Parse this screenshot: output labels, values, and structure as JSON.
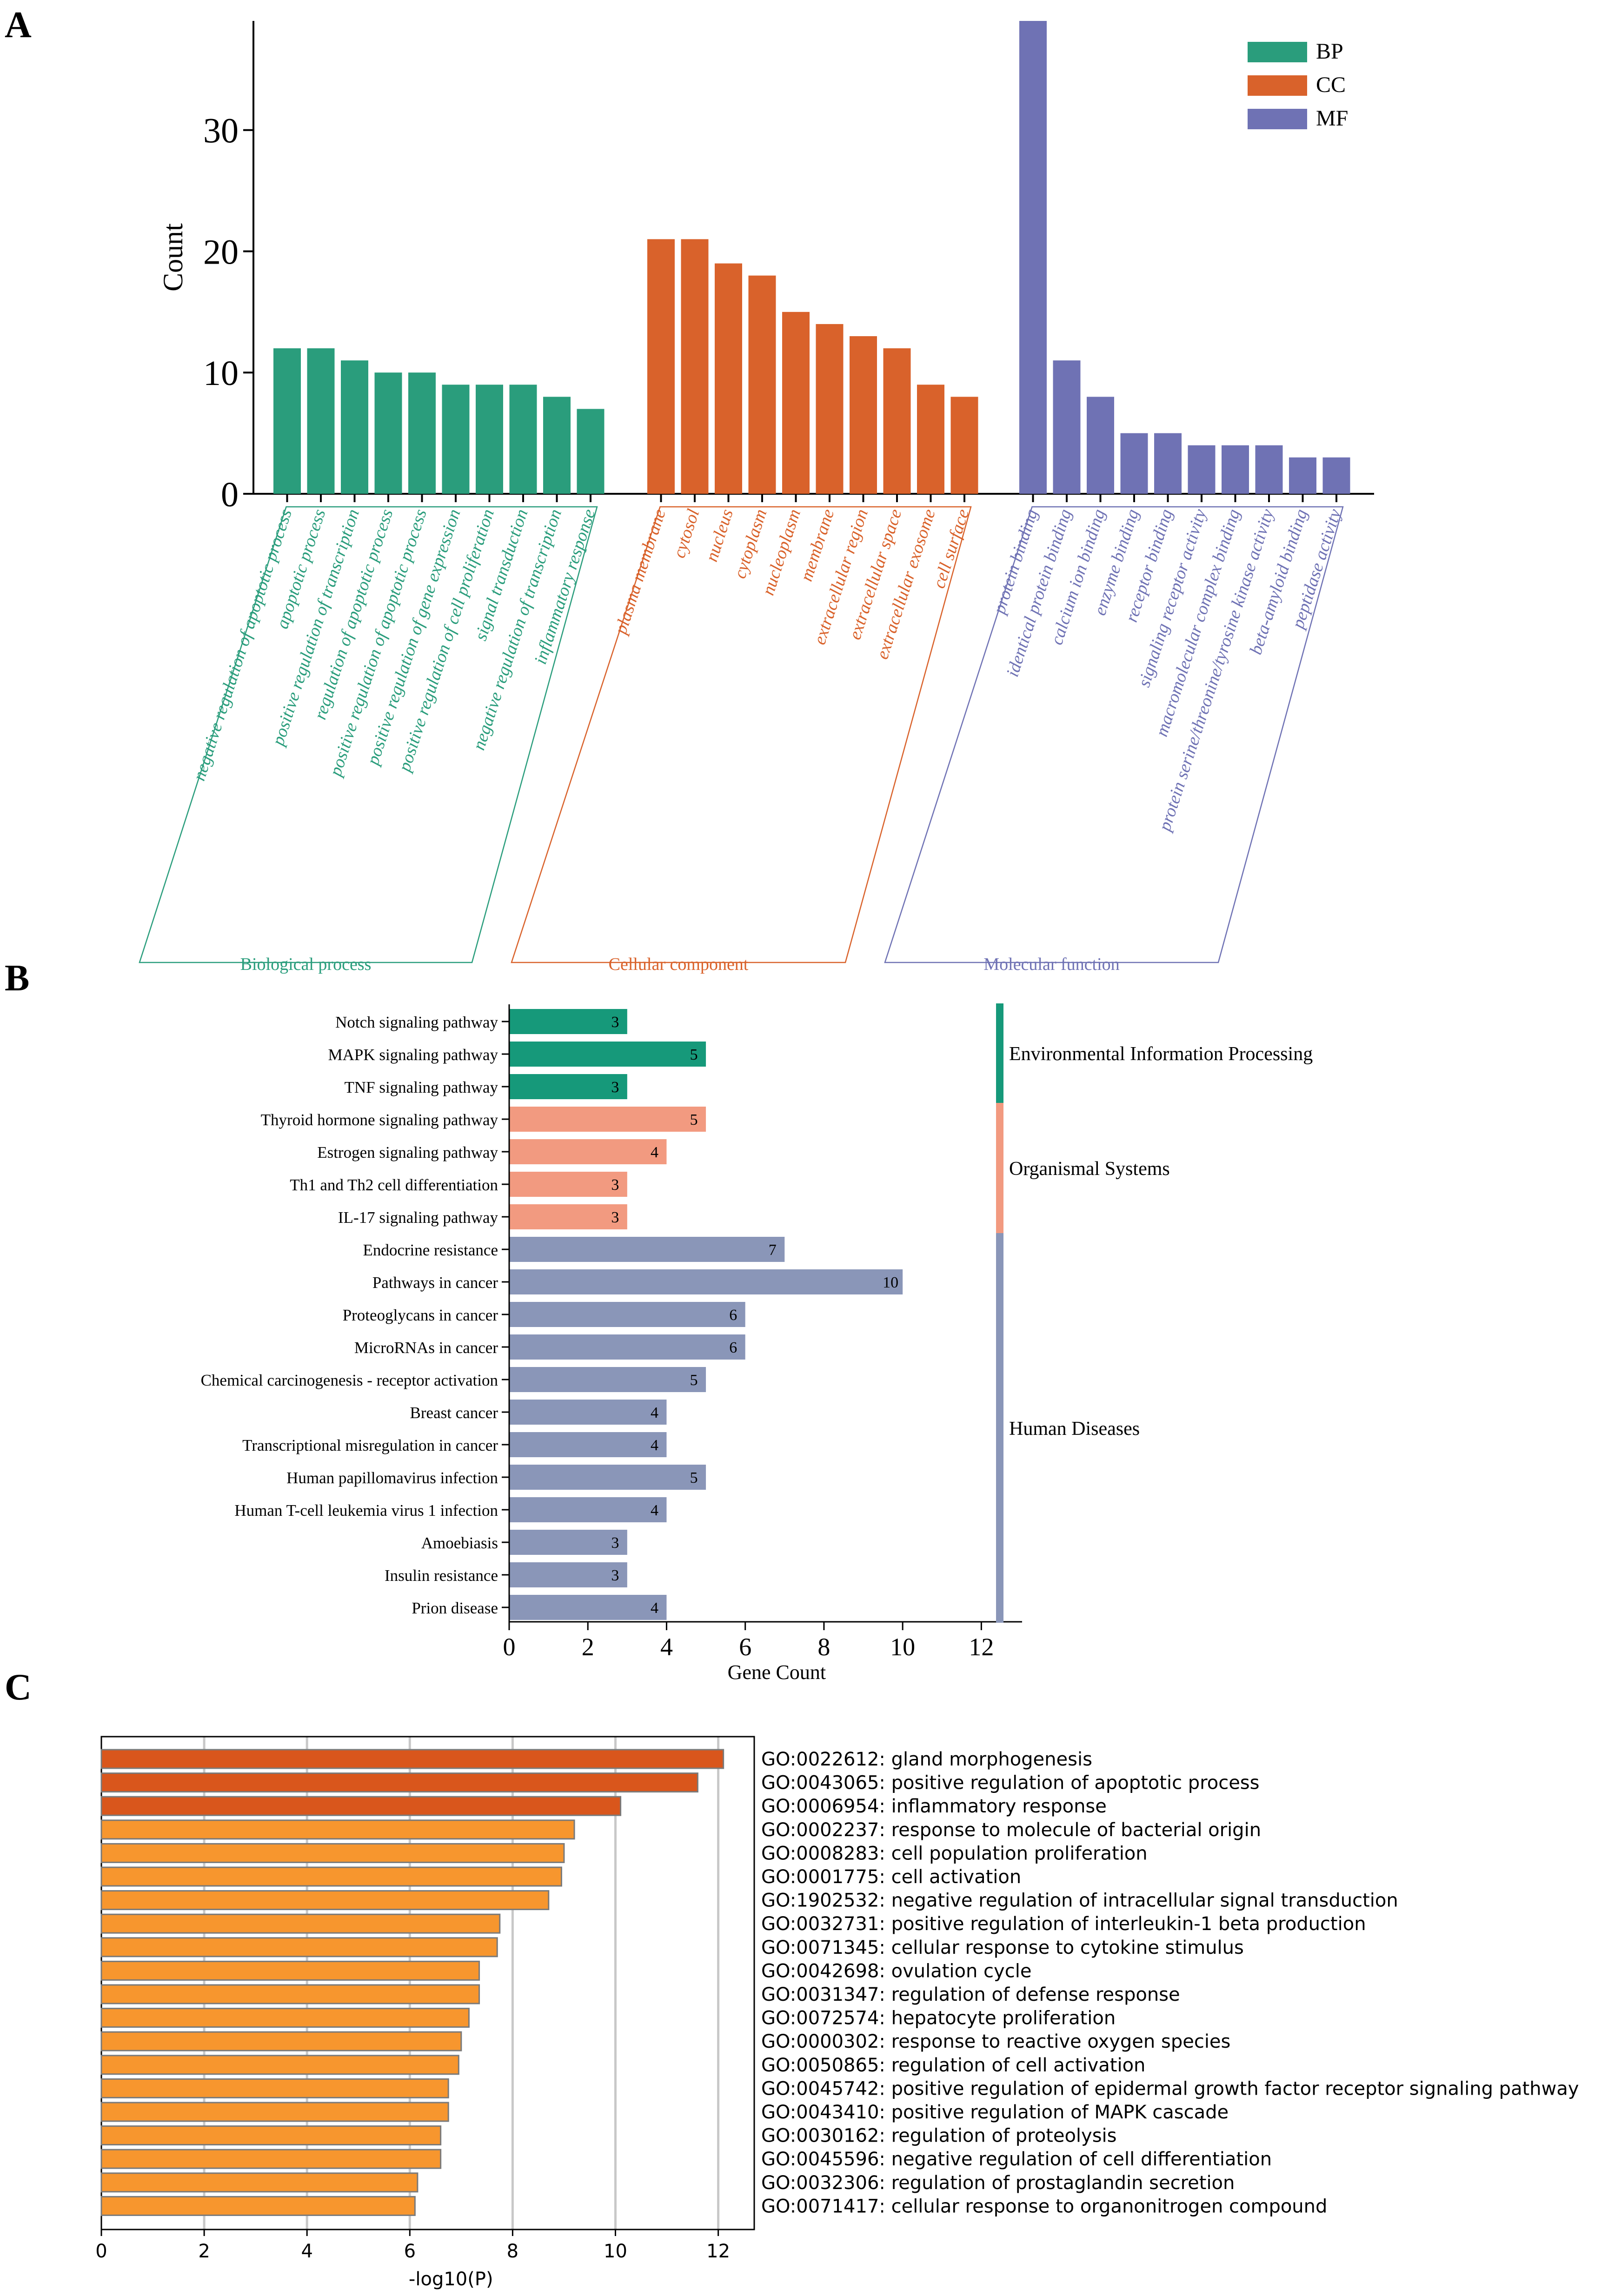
{
  "panels": {
    "a": {
      "letter": "A"
    },
    "b": {
      "letter": "B"
    },
    "c": {
      "letter": "C"
    }
  },
  "chart_data": [
    {
      "type": "bar",
      "title": "",
      "xlabel": "",
      "ylabel": "Count",
      "ylim": [
        0,
        39
      ],
      "yticks": [
        0,
        10,
        20,
        30
      ],
      "legend": {
        "placement": "top-right",
        "entries": [
          "BP",
          "CC",
          "MF"
        ]
      },
      "colors": {
        "BP": "#2a9d7c",
        "CC": "#d9622b",
        "MF": "#6f72b4"
      },
      "series": [
        {
          "name": "BP",
          "group_label": "Biological process",
          "categories": [
            "negative regulation of apoptotic process",
            "apoptotic process",
            "positive regulation of transcription",
            "regulation of apoptotic process",
            "positive regulation of apoptotic process",
            "positive regulation of gene expression",
            "positive regulation of cell proliferation",
            "signal transduction",
            "negative regulation of transcription",
            "inflammatory response"
          ],
          "values": [
            12,
            12,
            11,
            10,
            10,
            9,
            9,
            9,
            8,
            7
          ]
        },
        {
          "name": "CC",
          "group_label": "Cellular component",
          "categories": [
            "plasma membrane",
            "cytosol",
            "nucleus",
            "cytoplasm",
            "nucleoplasm",
            "membrane",
            "extracellular region",
            "extracellular space",
            "extracellular exosome",
            "cell surface"
          ],
          "values": [
            21,
            21,
            19,
            18,
            15,
            14,
            13,
            12,
            9,
            8
          ]
        },
        {
          "name": "MF",
          "group_label": "Molecular function",
          "categories": [
            "protein binding",
            "identical protein binding",
            "calcium ion binding",
            "enzyme binding",
            "receptor binding",
            "signaling receptor activity",
            "macromolecular complex binding",
            "protein serine/threonine/tyrosine kinase activity",
            "beta-amyloid binding",
            "peptidase activity"
          ],
          "values": [
            39,
            11,
            8,
            5,
            5,
            4,
            4,
            4,
            3,
            3
          ]
        }
      ]
    },
    {
      "type": "bar",
      "orientation": "horizontal",
      "title": "",
      "xlabel": "Gene Count",
      "ylabel": "",
      "xlim": [
        0,
        13
      ],
      "xticks": [
        0,
        2,
        4,
        6,
        8,
        10,
        12
      ],
      "categories": [
        "Notch signaling pathway",
        "MAPK signaling pathway",
        "TNF signaling pathway",
        "Thyroid hormone signaling pathway",
        "Estrogen signaling pathway",
        "Th1 and Th2 cell differentiation",
        "IL-17 signaling pathway",
        "Endocrine resistance",
        "Pathways in cancer",
        "Proteoglycans in cancer",
        "MicroRNAs in cancer",
        "Chemical carcinogenesis - receptor activation",
        "Breast cancer",
        "Transcriptional misregulation in cancer",
        "Human papillomavirus infection",
        "Human T-cell leukemia virus 1 infection",
        "Amoebiasis",
        "Insulin resistance",
        "Prion disease"
      ],
      "values": [
        3,
        5,
        3,
        5,
        4,
        3,
        3,
        7,
        10,
        6,
        6,
        5,
        4,
        4,
        5,
        4,
        3,
        3,
        4
      ],
      "groups": [
        {
          "name": "Environmental Information Processing",
          "count": 3,
          "color": "#16997a"
        },
        {
          "name": "Organismal Systems",
          "count": 4,
          "color": "#f29a80"
        },
        {
          "name": "Human Diseases",
          "count": 12,
          "color": "#8a96b8"
        }
      ]
    },
    {
      "type": "bar",
      "orientation": "horizontal",
      "title": "",
      "xlabel": "-log10(P)",
      "ylabel": "",
      "xlim": [
        0,
        12.7
      ],
      "xticks": [
        0,
        2,
        4,
        6,
        8,
        10,
        12
      ],
      "grid": true,
      "highlight_color": "#d9561c",
      "base_color": "#f7962e",
      "highlight_count": 3,
      "categories": [
        "GO:0022612: gland morphogenesis",
        "GO:0043065: positive regulation of apoptotic process",
        "GO:0006954: inflammatory response",
        "GO:0002237: response to molecule of bacterial origin",
        "GO:0008283: cell population proliferation",
        "GO:0001775: cell activation",
        "GO:1902532: negative regulation of intracellular signal transduction",
        "GO:0032731: positive regulation of interleukin-1 beta production",
        "GO:0071345: cellular response to cytokine stimulus",
        "GO:0042698: ovulation cycle",
        "GO:0031347: regulation of defense response",
        "GO:0072574: hepatocyte proliferation",
        "GO:0000302: response to reactive oxygen species",
        "GO:0050865: regulation of cell activation",
        "GO:0045742: positive regulation of epidermal growth factor receptor signaling pathway",
        "GO:0043410: positive regulation of MAPK cascade",
        "GO:0030162: regulation of proteolysis",
        "GO:0045596: negative regulation of cell differentiation",
        "GO:0032306: regulation of prostaglandin secretion",
        "GO:0071417: cellular response to organonitrogen compound"
      ],
      "values": [
        12.1,
        11.6,
        10.1,
        9.2,
        9.0,
        8.95,
        8.7,
        7.75,
        7.7,
        7.35,
        7.35,
        7.15,
        7.0,
        6.95,
        6.75,
        6.75,
        6.6,
        6.6,
        6.15,
        6.1
      ]
    }
  ]
}
